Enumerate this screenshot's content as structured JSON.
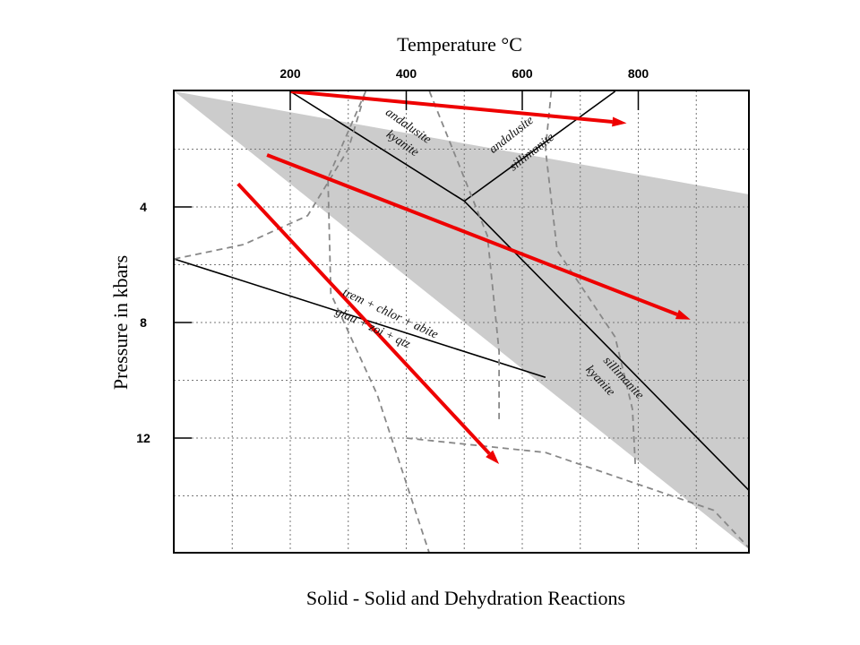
{
  "chart_data": {
    "type": "line",
    "title": "Solid - Solid and Dehydration Reactions",
    "xlabel": "Temperature °C",
    "ylabel": "Pressure in kbars",
    "x_ticks": [
      200,
      400,
      600,
      800
    ],
    "y_ticks": [
      4,
      8,
      12
    ],
    "xlim": [
      0,
      1000
    ],
    "ylim": [
      16,
      0
    ],
    "grid": true,
    "shaded_region": {
      "color": "#cccccc",
      "points": [
        [
          0,
          0
        ],
        [
          1000,
          3.6
        ],
        [
          1000,
          16
        ]
      ]
    },
    "series": [
      {
        "style": "solid",
        "color": "#000000",
        "points": [
          [
            200,
            0
          ],
          [
            500,
            3.8
          ],
          [
            1000,
            14
          ]
        ]
      },
      {
        "style": "solid",
        "color": "#000000",
        "points": [
          [
            500,
            3.8
          ],
          [
            760,
            0
          ]
        ]
      },
      {
        "style": "solid",
        "color": "#000000",
        "points": [
          [
            0,
            5.8
          ],
          [
            640,
            9.9
          ]
        ]
      },
      {
        "style": "dashed",
        "color": "#888888",
        "points": [
          [
            0,
            5.8
          ],
          [
            120,
            5.3
          ],
          [
            230,
            4.3
          ],
          [
            300,
            2.0
          ],
          [
            330,
            0
          ]
        ]
      },
      {
        "style": "dashed",
        "color": "#888888",
        "points": [
          [
            330,
            0
          ],
          [
            265,
            3.0
          ],
          [
            270,
            7.0
          ],
          [
            350,
            10.5
          ],
          [
            440,
            16
          ]
        ]
      },
      {
        "style": "dashed",
        "color": "#888888",
        "points": [
          [
            440,
            0
          ],
          [
            490,
            2.5
          ],
          [
            540,
            5.0
          ],
          [
            560,
            9.0
          ],
          [
            560,
            11.5
          ]
        ]
      },
      {
        "style": "dashed",
        "color": "#888888",
        "points": [
          [
            650,
            0
          ],
          [
            640,
            2.0
          ],
          [
            660,
            5.5
          ],
          [
            760,
            8.5
          ],
          [
            790,
            11.0
          ],
          [
            795,
            13.0
          ]
        ]
      },
      {
        "style": "dashed",
        "color": "#888888",
        "points": [
          [
            400,
            12.0
          ],
          [
            640,
            12.5
          ],
          [
            930,
            14.5
          ],
          [
            1000,
            16
          ]
        ]
      },
      {
        "style": "arrow",
        "color": "#ee0000",
        "points": [
          [
            200,
            0
          ],
          [
            780,
            1.1
          ]
        ]
      },
      {
        "style": "arrow",
        "color": "#ee0000",
        "points": [
          [
            160,
            2.2
          ],
          [
            890,
            7.9
          ]
        ]
      },
      {
        "style": "arrow",
        "color": "#ee0000",
        "points": [
          [
            110,
            3.2
          ],
          [
            560,
            12.9
          ]
        ]
      }
    ],
    "annotations": [
      {
        "text": "andalusite",
        "x": 400,
        "y": 1.3
      },
      {
        "text": "kyanite",
        "x": 390,
        "y": 1.9
      },
      {
        "text": "andalusite",
        "x": 585,
        "y": 1.6
      },
      {
        "text": "sillimanite",
        "x": 620,
        "y": 2.2
      },
      {
        "text": "trem + chlor + abite",
        "x": 370,
        "y": 7.8
      },
      {
        "text": "glau + zoi + qtz",
        "x": 340,
        "y": 8.3
      },
      {
        "text": "sillimanite",
        "x": 770,
        "y": 10.0
      },
      {
        "text": "kyanite",
        "x": 730,
        "y": 10.1
      }
    ]
  }
}
